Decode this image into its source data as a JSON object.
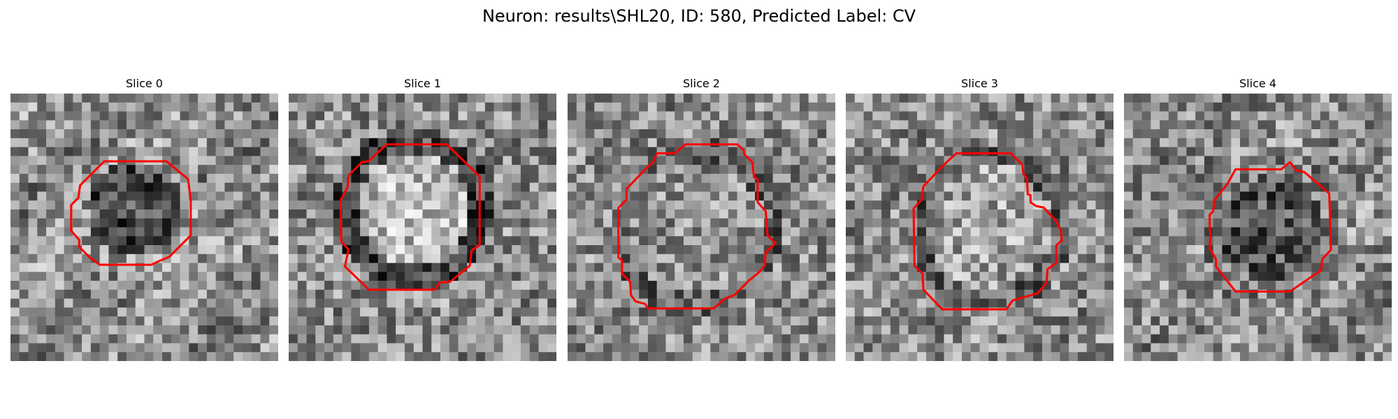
{
  "figure": {
    "title": "Neuron: results\\SHL20, ID: 580, Predicted Label: CV"
  },
  "slices": [
    {
      "title": "Slice 0"
    },
    {
      "title": "Slice 1"
    },
    {
      "title": "Slice 2"
    },
    {
      "title": "Slice 3"
    },
    {
      "title": "Slice 4"
    }
  ],
  "style": {
    "contour_color": "#ff0000",
    "colormap": "gray"
  }
}
